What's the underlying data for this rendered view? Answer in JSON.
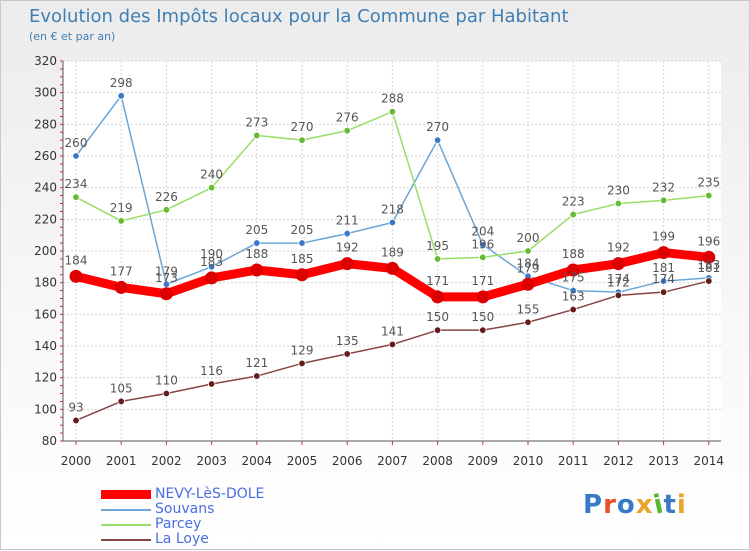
{
  "header": {
    "title": "Evolution des Impôts locaux pour la Commune par Habitant",
    "subtitle": "(en € et par an)"
  },
  "brand": {
    "logo_text": "Proxiti",
    "logo_colors": [
      "#3a78c8",
      "#e8512a",
      "#3a78c8",
      "#e8a52a",
      "#5cb531",
      "#3a78c8",
      "#e8a52a"
    ]
  },
  "colors": {
    "title": "#3f7fb4",
    "legend_text": "#4a6fe0",
    "axis_text": "#333333",
    "tick_marks": "#cc3333"
  },
  "chart_data": {
    "type": "line",
    "title": "Evolution des Impôts locaux pour la Commune par Habitant",
    "subtitle": "(en € et par an)",
    "xlabel": "",
    "ylabel": "",
    "categories": [
      "2000",
      "2001",
      "2002",
      "2003",
      "2004",
      "2005",
      "2006",
      "2007",
      "2008",
      "2009",
      "2010",
      "2011",
      "2012",
      "2013",
      "2014"
    ],
    "ylim": [
      80,
      320
    ],
    "yticks": [
      80,
      100,
      120,
      140,
      160,
      180,
      200,
      220,
      240,
      260,
      280,
      300,
      320
    ],
    "grid": true,
    "legend_position": "bottom-left",
    "series": [
      {
        "name": "NEVY-LèS-DOLE",
        "color": "#ff0000",
        "marker_color": "#dd0000",
        "thick": true,
        "values": [
          184,
          177,
          173,
          183,
          188,
          185,
          192,
          189,
          171,
          171,
          179,
          188,
          192,
          199,
          196
        ],
        "labels": [
          "184",
          "177",
          "173",
          "183",
          "188",
          "185",
          "192",
          "189",
          "171",
          "171",
          "179",
          "188",
          "192",
          "199",
          "196"
        ]
      },
      {
        "name": "Souvans",
        "color": "#6aa6d8",
        "marker_color": "#3a78c8",
        "thick": false,
        "values": [
          260,
          298,
          179,
          190,
          205,
          205,
          211,
          218,
          270,
          204,
          184,
          175,
          174,
          181,
          183
        ],
        "labels": [
          "260",
          "298",
          "179",
          "190",
          "205",
          "205",
          "211",
          "218",
          "270",
          "204",
          "184",
          "175",
          "174",
          "181",
          "183"
        ]
      },
      {
        "name": "Parcey",
        "color": "#99dd66",
        "marker_color": "#66bb33",
        "thick": false,
        "values": [
          234,
          219,
          226,
          240,
          273,
          270,
          276,
          288,
          195,
          196,
          200,
          223,
          230,
          232,
          235
        ],
        "labels": [
          "234",
          "219",
          "226",
          "240",
          "273",
          "270",
          "276",
          "288",
          "195",
          "196",
          "200",
          "223",
          "230",
          "232",
          "235"
        ]
      },
      {
        "name": "La Loye",
        "color": "#884444",
        "marker_color": "#661a1a",
        "thick": false,
        "values": [
          93,
          105,
          110,
          116,
          121,
          129,
          135,
          141,
          150,
          150,
          155,
          163,
          172,
          174,
          181
        ],
        "labels": [
          "93",
          "105",
          "110",
          "116",
          "121",
          "129",
          "135",
          "141",
          "150",
          "150",
          "155",
          "163",
          "172",
          "174",
          "181"
        ]
      }
    ]
  }
}
